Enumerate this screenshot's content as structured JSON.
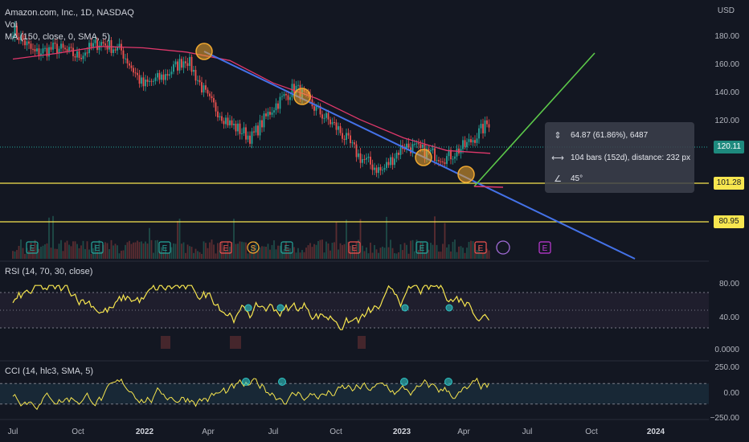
{
  "header": {
    "title": "Amazon.com, Inc., 1D, NASDAQ",
    "vol": "Vol",
    "ma": "MA (150, close, 0, SMA, 5)",
    "rsi": "RSI (14, 70, 30, close)",
    "cci": "CCI (14, hlc3, SMA, 5)"
  },
  "currency": "USD",
  "tooltip": {
    "price_change": "64.87 (61.86%), 6487",
    "bars": "104 bars (152d), distance: 232 px",
    "angle": "45°"
  },
  "price_tags": {
    "current": "120.11",
    "support_high": "101.28",
    "support_low": "80.95"
  },
  "colors": {
    "up": "#26a69a",
    "down": "#ef5350",
    "ma": "#e0386b",
    "trendline": "#4472e8",
    "projection": "#5cc94a",
    "support": "#f7e64f",
    "rsi": "#f7e64f",
    "cci": "#f7e64f",
    "marker": "#f0a830"
  },
  "chart_data": {
    "type": "line",
    "title": "Amazon.com, Inc., 1D, NASDAQ",
    "y_unit": "USD",
    "x_ticks": [
      "Jul",
      "Oct",
      "2022",
      "Apr",
      "Jul",
      "Oct",
      "2023",
      "Apr",
      "Jul",
      "Oct",
      "2024"
    ],
    "y_ticks": [
      180,
      160,
      140,
      120
    ],
    "ylim": [
      68,
      198
    ],
    "series": [
      {
        "name": "Price",
        "x": [
          "2021-07",
          "2021-08",
          "2021-09",
          "2021-10",
          "2021-11",
          "2021-12",
          "2022-01",
          "2022-02",
          "2022-03",
          "2022-04",
          "2022-05",
          "2022-06",
          "2022-07",
          "2022-08",
          "2022-09",
          "2022-10",
          "2022-11",
          "2022-12",
          "2023-01",
          "2023-02",
          "2023-03",
          "2023-04",
          "2023-05"
        ],
        "y": [
          185,
          168,
          172,
          166,
          176,
          170,
          145,
          152,
          165,
          135,
          118,
          108,
          130,
          144,
          128,
          114,
          94,
          84,
          103,
          98,
          94,
          104,
          120
        ]
      },
      {
        "name": "MA (150, close, 0, SMA, 5)",
        "x": [
          "2021-07",
          "2021-09",
          "2021-11",
          "2022-01",
          "2022-03",
          "2022-05",
          "2022-07",
          "2022-09",
          "2022-11",
          "2023-01",
          "2023-03",
          "2023-05"
        ],
        "y": [
          164,
          168,
          173,
          172,
          169,
          163,
          147,
          136,
          121,
          108,
          99,
          97
        ]
      }
    ],
    "levels": [
      101.28,
      80.95
    ],
    "last_price": 120.11,
    "grid": false,
    "rsi": {
      "label": "RSI (14, 70, 30, close)",
      "y_ticks": [
        80.0,
        40.0,
        0.0
      ],
      "bands": [
        70,
        50,
        30
      ],
      "last": 67
    },
    "cci": {
      "label": "CCI (14, hlc3, SMA, 5)",
      "y_ticks": [
        250.0,
        0.0,
        -250.0
      ],
      "bands": [
        100,
        -100
      ]
    },
    "annotations": {
      "earnings": [
        "E",
        "E",
        "E",
        "E",
        "E",
        "E",
        "E",
        "E",
        "E"
      ],
      "dividend_split": [
        "S"
      ]
    }
  }
}
